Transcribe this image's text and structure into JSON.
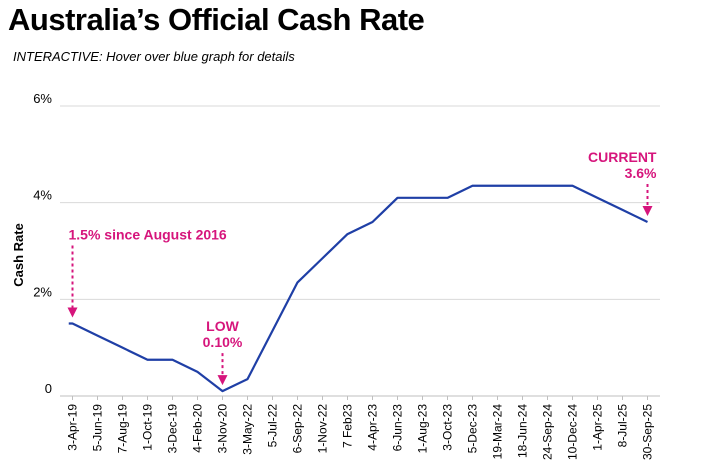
{
  "header": {
    "title": "Australia’s Official Cash Rate",
    "subtitle": "INTERACTIVE: Hover over blue graph for details"
  },
  "chart_data": {
    "type": "line",
    "title": "Australia’s Official Cash Rate",
    "subtitle": "INTERACTIVE: Hover over blue graph for details",
    "xlabel": "",
    "ylabel": "Cash Rate",
    "ylim": [
      0,
      6
    ],
    "y_ticks": [
      {
        "value": 0,
        "label": "0"
      },
      {
        "value": 2,
        "label": "2%"
      },
      {
        "value": 4,
        "label": "4%"
      },
      {
        "value": 6,
        "label": "6%"
      }
    ],
    "grid": true,
    "x_ticks": [
      "3-Apr-19",
      "5-Jun-19",
      "7-Aug-19",
      "1-Oct-19",
      "3-Dec-19",
      "4-Feb-20",
      "3-Nov-20",
      "3-May-22",
      "5-Jul-22",
      "6-Sep-22",
      "1-Nov-22",
      "7 Feb23",
      "4-Apr-23",
      "6-Jun-23",
      "1-Aug-23",
      "3-Oct-23",
      "5-Dec-23",
      "19-Mar-24",
      "18-Jun-24",
      "24-Sep-24",
      "10-Dec-24",
      "1-Apr-25",
      "8-Jul-25",
      "30-Sep-25"
    ],
    "series": [
      {
        "color": "#1f3fa6",
        "points": [
          {
            "x": "3-Apr-19",
            "y": 1.5
          },
          {
            "x": "5-Jun-19",
            "y": 1.25
          },
          {
            "x": "7-Aug-19",
            "y": 1.0
          },
          {
            "x": "1-Oct-19",
            "y": 0.75
          },
          {
            "x": "3-Dec-19",
            "y": 0.75
          },
          {
            "x": "4-Feb-20",
            "y": 0.5
          },
          {
            "x": "3-Nov-20",
            "y": 0.1
          },
          {
            "x": "3-May-22",
            "y": 0.35
          },
          {
            "x": "5-Jul-22",
            "y": 1.35
          },
          {
            "x": "6-Sep-22",
            "y": 2.35
          },
          {
            "x": "1-Nov-22",
            "y": 2.85
          },
          {
            "x": "7 Feb23",
            "y": 3.35
          },
          {
            "x": "4-Apr-23",
            "y": 3.6
          },
          {
            "x": "6-Jun-23",
            "y": 4.1
          },
          {
            "x": "1-Aug-23",
            "y": 4.1
          },
          {
            "x": "3-Oct-23",
            "y": 4.1
          },
          {
            "x": "5-Dec-23",
            "y": 4.35
          },
          {
            "x": "19-Mar-24",
            "y": 4.35
          },
          {
            "x": "18-Jun-24",
            "y": 4.35
          },
          {
            "x": "24-Sep-24",
            "y": 4.35
          },
          {
            "x": "10-Dec-24",
            "y": 4.35
          },
          {
            "x": "1-Apr-25",
            "y": 4.1
          },
          {
            "x": "8-Jul-25",
            "y": 3.85
          },
          {
            "x": "30-Sep-25",
            "y": 3.6
          }
        ]
      }
    ],
    "annotations": [
      {
        "lines": [
          "1.5% since August 2016"
        ],
        "x": "3-Apr-19",
        "y": 1.5,
        "color": "#d6157c"
      },
      {
        "lines": [
          "LOW",
          "0.10%"
        ],
        "x": "3-Nov-20",
        "y": 0.1,
        "color": "#d6157c"
      },
      {
        "lines": [
          "CURRENT",
          "3.6%"
        ],
        "x": "30-Sep-25",
        "y": 3.6,
        "color": "#d6157c"
      }
    ]
  }
}
